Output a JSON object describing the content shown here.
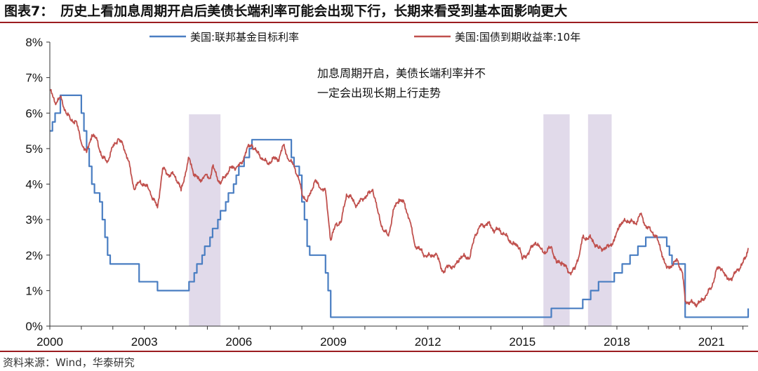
{
  "title": {
    "lead": "图表7：",
    "text": "历史上看加息周期开启后美债长端利率可能会出现下行，长期来看受到基本面影响更大"
  },
  "source": "资料来源：Wind，华泰研究",
  "colors": {
    "fed_funds": "#4a7ec2",
    "treasury_10y": "#c0504d",
    "shade": "#dcd3e6",
    "rule": "#9b1c20"
  },
  "chart_data": {
    "type": "line",
    "x_ticks": [
      "2000",
      "2003",
      "2006",
      "2009",
      "2012",
      "2015",
      "2018",
      "2021"
    ],
    "y_ticks": [
      "0%",
      "1%",
      "2%",
      "3%",
      "4%",
      "5%",
      "6%",
      "7%",
      "8%"
    ],
    "xlim": [
      "2000-01",
      "2022-03"
    ],
    "ylim": [
      0,
      8
    ],
    "grid": false,
    "legend_position": "top",
    "annotation": [
      "加息周期开启，美债长端利率并不",
      "一定会出现长期上行走势"
    ],
    "shaded_periods": [
      [
        "2004-06",
        "2005-06"
      ],
      [
        "2015-09",
        "2016-07"
      ],
      [
        "2017-02",
        "2017-11"
      ]
    ],
    "series": [
      {
        "name": "美国:联邦基金目标利率",
        "style": "step",
        "points": [
          [
            "2000-01",
            5.5
          ],
          [
            "2000-02",
            5.75
          ],
          [
            "2000-03",
            6.0
          ],
          [
            "2000-05",
            6.5
          ],
          [
            "2001-01",
            6.0
          ],
          [
            "2001-02",
            5.5
          ],
          [
            "2001-03",
            5.0
          ],
          [
            "2001-04",
            4.5
          ],
          [
            "2001-05",
            4.0
          ],
          [
            "2001-06",
            3.75
          ],
          [
            "2001-08",
            3.5
          ],
          [
            "2001-09",
            3.0
          ],
          [
            "2001-10",
            2.5
          ],
          [
            "2001-11",
            2.0
          ],
          [
            "2001-12",
            1.75
          ],
          [
            "2002-11",
            1.25
          ],
          [
            "2003-06",
            1.0
          ],
          [
            "2004-06",
            1.25
          ],
          [
            "2004-08",
            1.5
          ],
          [
            "2004-09",
            1.75
          ],
          [
            "2004-11",
            2.0
          ],
          [
            "2004-12",
            2.25
          ],
          [
            "2005-02",
            2.5
          ],
          [
            "2005-03",
            2.75
          ],
          [
            "2005-05",
            3.0
          ],
          [
            "2005-06",
            3.25
          ],
          [
            "2005-08",
            3.5
          ],
          [
            "2005-09",
            3.75
          ],
          [
            "2005-11",
            4.0
          ],
          [
            "2005-12",
            4.25
          ],
          [
            "2006-01",
            4.5
          ],
          [
            "2006-03",
            4.75
          ],
          [
            "2006-05",
            5.0
          ],
          [
            "2006-06",
            5.25
          ],
          [
            "2007-09",
            4.75
          ],
          [
            "2007-10",
            4.5
          ],
          [
            "2007-12",
            4.25
          ],
          [
            "2008-01",
            3.5
          ],
          [
            "2008-02",
            3.0
          ],
          [
            "2008-03",
            2.25
          ],
          [
            "2008-04",
            2.0
          ],
          [
            "2008-10",
            1.5
          ],
          [
            "2008-11",
            1.0
          ],
          [
            "2008-12",
            0.25
          ],
          [
            "2015-12",
            0.5
          ],
          [
            "2016-12",
            0.75
          ],
          [
            "2017-03",
            1.0
          ],
          [
            "2017-06",
            1.25
          ],
          [
            "2017-12",
            1.5
          ],
          [
            "2018-03",
            1.75
          ],
          [
            "2018-06",
            2.0
          ],
          [
            "2018-09",
            2.25
          ],
          [
            "2018-12",
            2.5
          ],
          [
            "2019-08",
            2.25
          ],
          [
            "2019-09",
            2.0
          ],
          [
            "2019-10",
            1.75
          ],
          [
            "2020-03",
            0.25
          ],
          [
            "2022-03",
            0.5
          ]
        ]
      },
      {
        "name": "美国:国债到期收益率:10年",
        "style": "line",
        "points": [
          [
            "2000-01",
            6.66
          ],
          [
            "2000-03",
            6.3
          ],
          [
            "2000-05",
            6.44
          ],
          [
            "2000-07",
            6.05
          ],
          [
            "2000-09",
            5.8
          ],
          [
            "2000-11",
            5.78
          ],
          [
            "2001-01",
            5.16
          ],
          [
            "2001-03",
            4.89
          ],
          [
            "2001-05",
            5.39
          ],
          [
            "2001-07",
            5.24
          ],
          [
            "2001-09",
            4.73
          ],
          [
            "2001-11",
            4.65
          ],
          [
            "2002-01",
            5.04
          ],
          [
            "2002-03",
            5.28
          ],
          [
            "2002-05",
            5.08
          ],
          [
            "2002-07",
            4.65
          ],
          [
            "2002-09",
            3.87
          ],
          [
            "2002-11",
            4.05
          ],
          [
            "2003-01",
            4.0
          ],
          [
            "2003-03",
            3.81
          ],
          [
            "2003-06",
            3.33
          ],
          [
            "2003-08",
            4.45
          ],
          [
            "2003-10",
            4.27
          ],
          [
            "2003-12",
            4.27
          ],
          [
            "2004-02",
            4.06
          ],
          [
            "2004-03",
            3.81
          ],
          [
            "2004-06",
            4.73
          ],
          [
            "2004-08",
            4.28
          ],
          [
            "2004-10",
            4.1
          ],
          [
            "2004-12",
            4.23
          ],
          [
            "2005-02",
            4.17
          ],
          [
            "2005-03",
            4.5
          ],
          [
            "2005-06",
            4.0
          ],
          [
            "2005-08",
            4.26
          ],
          [
            "2005-10",
            4.46
          ],
          [
            "2005-12",
            4.47
          ],
          [
            "2006-02",
            4.57
          ],
          [
            "2006-04",
            4.99
          ],
          [
            "2006-06",
            5.11
          ],
          [
            "2006-08",
            4.88
          ],
          [
            "2006-10",
            4.73
          ],
          [
            "2006-12",
            4.56
          ],
          [
            "2007-02",
            4.72
          ],
          [
            "2007-04",
            4.69
          ],
          [
            "2007-06",
            5.1
          ],
          [
            "2007-08",
            4.67
          ],
          [
            "2007-10",
            4.53
          ],
          [
            "2007-12",
            4.1
          ],
          [
            "2008-01",
            3.74
          ],
          [
            "2008-03",
            3.51
          ],
          [
            "2008-06",
            4.1
          ],
          [
            "2008-08",
            3.89
          ],
          [
            "2008-10",
            3.81
          ],
          [
            "2008-12",
            2.42
          ],
          [
            "2009-02",
            2.87
          ],
          [
            "2009-04",
            2.93
          ],
          [
            "2009-06",
            3.72
          ],
          [
            "2009-08",
            3.59
          ],
          [
            "2009-10",
            3.39
          ],
          [
            "2009-12",
            3.59
          ],
          [
            "2010-02",
            3.69
          ],
          [
            "2010-04",
            3.85
          ],
          [
            "2010-06",
            3.2
          ],
          [
            "2010-08",
            2.7
          ],
          [
            "2010-10",
            2.54
          ],
          [
            "2010-12",
            3.29
          ],
          [
            "2011-02",
            3.58
          ],
          [
            "2011-04",
            3.46
          ],
          [
            "2011-06",
            3.0
          ],
          [
            "2011-08",
            2.3
          ],
          [
            "2011-10",
            2.15
          ],
          [
            "2011-12",
            1.98
          ],
          [
            "2012-02",
            1.97
          ],
          [
            "2012-04",
            2.05
          ],
          [
            "2012-07",
            1.5
          ],
          [
            "2012-09",
            1.72
          ],
          [
            "2012-11",
            1.65
          ],
          [
            "2013-01",
            1.91
          ],
          [
            "2013-03",
            1.96
          ],
          [
            "2013-05",
            1.93
          ],
          [
            "2013-07",
            2.58
          ],
          [
            "2013-09",
            2.81
          ],
          [
            "2013-12",
            2.9
          ],
          [
            "2014-02",
            2.71
          ],
          [
            "2014-04",
            2.71
          ],
          [
            "2014-06",
            2.6
          ],
          [
            "2014-08",
            2.42
          ],
          [
            "2014-10",
            2.3
          ],
          [
            "2014-12",
            2.21
          ],
          [
            "2015-01",
            1.88
          ],
          [
            "2015-03",
            2.04
          ],
          [
            "2015-06",
            2.36
          ],
          [
            "2015-08",
            2.17
          ],
          [
            "2015-10",
            2.07
          ],
          [
            "2015-12",
            2.24
          ],
          [
            "2016-02",
            1.78
          ],
          [
            "2016-04",
            1.81
          ],
          [
            "2016-07",
            1.5
          ],
          [
            "2016-09",
            1.6
          ],
          [
            "2016-11",
            2.14
          ],
          [
            "2016-12",
            2.49
          ],
          [
            "2017-03",
            2.48
          ],
          [
            "2017-06",
            2.19
          ],
          [
            "2017-09",
            2.2
          ],
          [
            "2017-12",
            2.4
          ],
          [
            "2018-02",
            2.86
          ],
          [
            "2018-05",
            2.98
          ],
          [
            "2018-08",
            2.89
          ],
          [
            "2018-10",
            3.15
          ],
          [
            "2018-12",
            2.83
          ],
          [
            "2019-02",
            2.68
          ],
          [
            "2019-04",
            2.53
          ],
          [
            "2019-06",
            2.07
          ],
          [
            "2019-08",
            1.63
          ],
          [
            "2019-10",
            1.71
          ],
          [
            "2019-12",
            1.86
          ],
          [
            "2020-02",
            1.5
          ],
          [
            "2020-03",
            0.7
          ],
          [
            "2020-05",
            0.67
          ],
          [
            "2020-07",
            0.62
          ],
          [
            "2020-09",
            0.68
          ],
          [
            "2020-11",
            0.87
          ],
          [
            "2021-01",
            1.08
          ],
          [
            "2021-03",
            1.61
          ],
          [
            "2021-05",
            1.62
          ],
          [
            "2021-07",
            1.32
          ],
          [
            "2021-09",
            1.37
          ],
          [
            "2021-11",
            1.58
          ],
          [
            "2022-01",
            1.78
          ],
          [
            "2022-02",
            1.93
          ],
          [
            "2022-03",
            2.2
          ]
        ]
      }
    ]
  }
}
